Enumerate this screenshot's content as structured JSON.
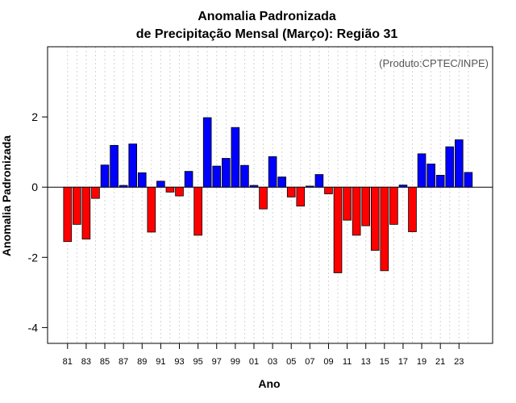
{
  "chart_data": {
    "type": "bar",
    "title": "Anomalia Padronizada",
    "subtitle": "de Precipitação Mensal (Março): Região 31",
    "xlabel": "Ano",
    "ylabel": "Anomalia Padronizada",
    "annotation": "(Produto:CPTEC/INPE)",
    "ylim": [
      -4.45,
      4.0
    ],
    "yticks": [
      -4,
      -2,
      0,
      2
    ],
    "grid": "vertical-dotted",
    "colors": {
      "positive": "#0000ff",
      "negative": "#ff0000",
      "zero_line": "#000000",
      "grid": "#d3d3d3"
    },
    "categories": [
      "81",
      "82",
      "83",
      "84",
      "85",
      "86",
      "87",
      "88",
      "89",
      "90",
      "91",
      "92",
      "93",
      "94",
      "95",
      "96",
      "97",
      "98",
      "99",
      "00",
      "01",
      "02",
      "03",
      "04",
      "05",
      "06",
      "07",
      "08",
      "09",
      "10",
      "11",
      "12",
      "13",
      "14",
      "15",
      "16",
      "17",
      "18",
      "19",
      "20",
      "21",
      "22",
      "23",
      "24"
    ],
    "tick_labels": [
      "81",
      "83",
      "85",
      "87",
      "89",
      "91",
      "93",
      "95",
      "97",
      "99",
      "01",
      "03",
      "05",
      "07",
      "09",
      "11",
      "13",
      "15",
      "17",
      "19",
      "21",
      "23"
    ],
    "values": [
      -1.55,
      -1.06,
      -1.48,
      -0.32,
      0.63,
      1.19,
      0.05,
      1.23,
      0.41,
      -1.28,
      0.17,
      -0.14,
      -0.25,
      0.45,
      -1.37,
      1.98,
      0.6,
      0.82,
      1.7,
      0.62,
      0.05,
      -0.62,
      0.87,
      0.29,
      -0.28,
      -0.54,
      0.03,
      0.36,
      -0.19,
      -2.44,
      -0.94,
      -1.37,
      -1.1,
      -1.8,
      -2.38,
      -1.06,
      0.06,
      -1.27,
      0.95,
      0.66,
      0.34,
      1.15,
      1.35,
      0.42
    ]
  }
}
